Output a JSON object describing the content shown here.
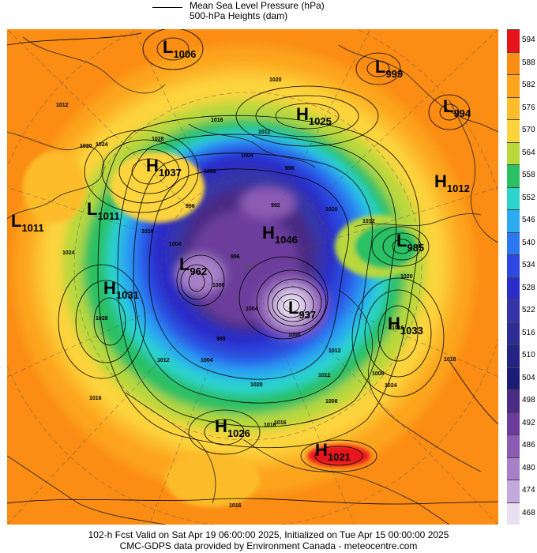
{
  "header": {
    "legend_line_label": "Mean Sea Level Pressure (hPa)",
    "legend_fill_label": "500-hPa Heights (dam)"
  },
  "footer": {
    "line1": "102-h Fcst Valid on Sat Apr 19 06:00:00 2025, Initialized on Tue Apr 15 00:00:00 2025",
    "line2": "CMC-GDPS data provided by Environment Canada - meteocentre.com"
  },
  "colorbar": {
    "levels": [
      "594",
      "588",
      "582",
      "576",
      "570",
      "564",
      "558",
      "552",
      "546",
      "540",
      "534",
      "528",
      "522",
      "516",
      "510",
      "504",
      "498",
      "492",
      "486",
      "480",
      "474",
      "468"
    ],
    "colors": [
      "#e8141c",
      "#fb8c14",
      "#fca41c",
      "#fcbc2c",
      "#fcd43c",
      "#b8d83c",
      "#2cc064",
      "#2cd4cc",
      "#2caaf0",
      "#2c78f0",
      "#2c48e0",
      "#2c2cc8",
      "#3434a8",
      "#2c2c94",
      "#242484",
      "#1c1c74",
      "#4a2c84",
      "#6c3c9c",
      "#8c5cb4",
      "#a880c8",
      "#c4a8dc",
      "#e8e0f0"
    ]
  },
  "pressure_systems": [
    {
      "type": "L",
      "value": "1006"
    },
    {
      "type": "L",
      "value": "999"
    },
    {
      "type": "H",
      "value": "1025"
    },
    {
      "type": "L",
      "value": "994"
    },
    {
      "type": "H",
      "value": "1037"
    },
    {
      "type": "H",
      "value": "1012"
    },
    {
      "type": "L",
      "value": "1011"
    },
    {
      "type": "L",
      "value": "1011"
    },
    {
      "type": "H",
      "value": "1046"
    },
    {
      "type": "L",
      "value": "985"
    },
    {
      "type": "L",
      "value": "962"
    },
    {
      "type": "H",
      "value": "1031"
    },
    {
      "type": "L",
      "value": "937"
    },
    {
      "type": "H",
      "value": "1033"
    },
    {
      "type": "H",
      "value": "1026"
    },
    {
      "type": "H",
      "value": "1021"
    }
  ],
  "isobar_labels": [
    "1020",
    "1012",
    "1016",
    "1020",
    "1024",
    "1028",
    "1012",
    "1004",
    "1008",
    "996",
    "996",
    "992",
    "1004",
    "1016",
    "1012",
    "1020",
    "1024",
    "1028",
    "996",
    "1008",
    "1004",
    "988",
    "1000",
    "1004",
    "1012",
    "1008",
    "1016",
    "1024",
    "1016",
    "1016",
    "1012",
    "1016",
    "1020",
    "1028",
    "1008",
    "1016",
    "1012",
    "1016"
  ]
}
